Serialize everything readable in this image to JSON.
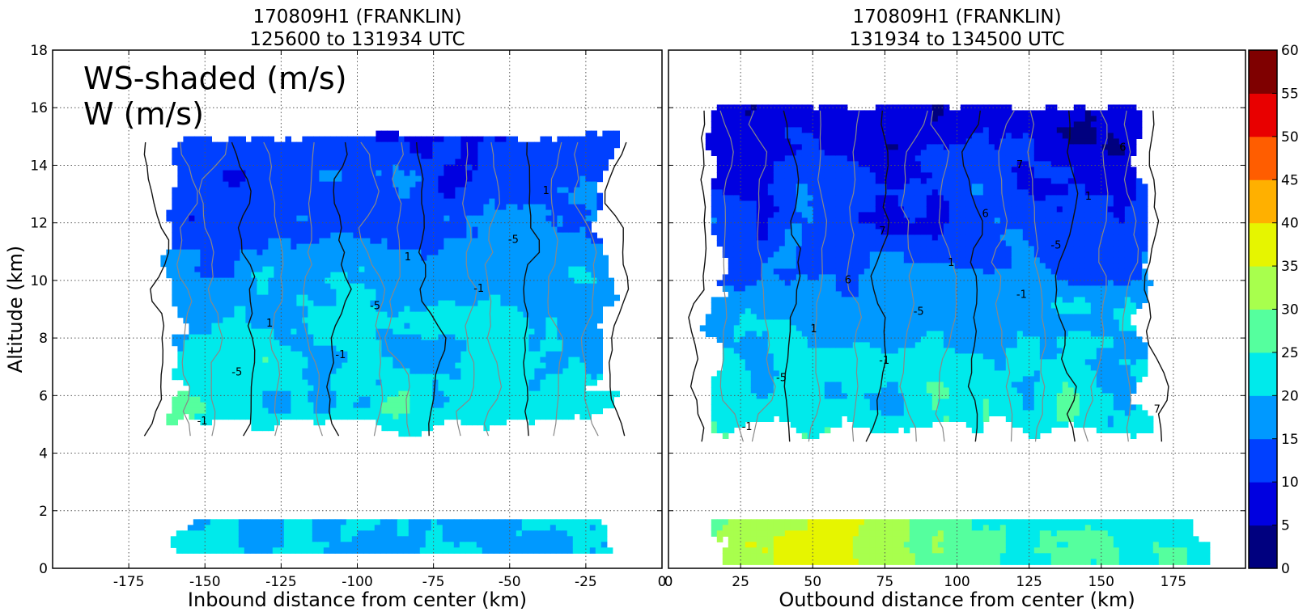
{
  "chart_data": [
    {
      "type": "heatmap",
      "title": "170809H1 (FRANKLIN)",
      "subtitle": "125600 to 131934 UTC",
      "xlabel": "Inbound distance from center (km)",
      "ylabel": "Altitude (km)",
      "xlim": [
        -200,
        0
      ],
      "ylim": [
        0,
        18
      ],
      "xticks": [
        -175,
        -150,
        -125,
        -100,
        -75,
        -50,
        -25,
        0
      ],
      "yticks": [
        0,
        2,
        4,
        6,
        8,
        10,
        12,
        14,
        16,
        18
      ],
      "grid": true,
      "annotation": [
        "WS-shaded (m/s)",
        "W (m/s)"
      ],
      "contour_labels": [
        "-1",
        "-5",
        "1"
      ],
      "regions": [
        {
          "x": [
            -172,
            -10
          ],
          "y": [
            4.4,
            15.4
          ],
          "value_range": [
            5,
            25
          ],
          "level": "upper"
        },
        {
          "x": [
            -165,
            -10
          ],
          "y": [
            0.5,
            1.9
          ],
          "value_range": [
            15,
            25
          ],
          "level": "lower"
        }
      ]
    },
    {
      "type": "heatmap",
      "title": "170809H1 (FRANKLIN)",
      "subtitle": "131934 to 134500 UTC",
      "xlabel": "Outbound distance from center (km)",
      "ylabel": "",
      "xlim": [
        0,
        200
      ],
      "ylim": [
        0,
        18
      ],
      "xticks": [
        0,
        25,
        50,
        75,
        100,
        125,
        150,
        175
      ],
      "yticks": [
        0,
        2,
        4,
        6,
        8,
        10,
        12,
        14,
        16,
        18
      ],
      "grid": true,
      "contour_labels": [
        "-1",
        "-5",
        "1",
        "6",
        "7"
      ],
      "regions": [
        {
          "x": [
            5,
            175
          ],
          "y": [
            4.2,
            16.5
          ],
          "value_range": [
            0,
            25
          ],
          "level": "upper"
        },
        {
          "x": [
            5,
            195
          ],
          "y": [
            0.1,
            1.9
          ],
          "value_range": [
            15,
            40
          ],
          "level": "lower"
        }
      ]
    }
  ],
  "colorbar": {
    "levels": [
      0,
      5,
      10,
      15,
      20,
      25,
      30,
      35,
      40,
      45,
      50,
      55,
      60
    ],
    "colors": [
      "#00007f",
      "#0000e0",
      "#0040ff",
      "#0099ff",
      "#00eaeb",
      "#55ff9e",
      "#a8ff4d",
      "#e6f500",
      "#ffb000",
      "#ff5d00",
      "#e80000",
      "#7f0000"
    ]
  }
}
